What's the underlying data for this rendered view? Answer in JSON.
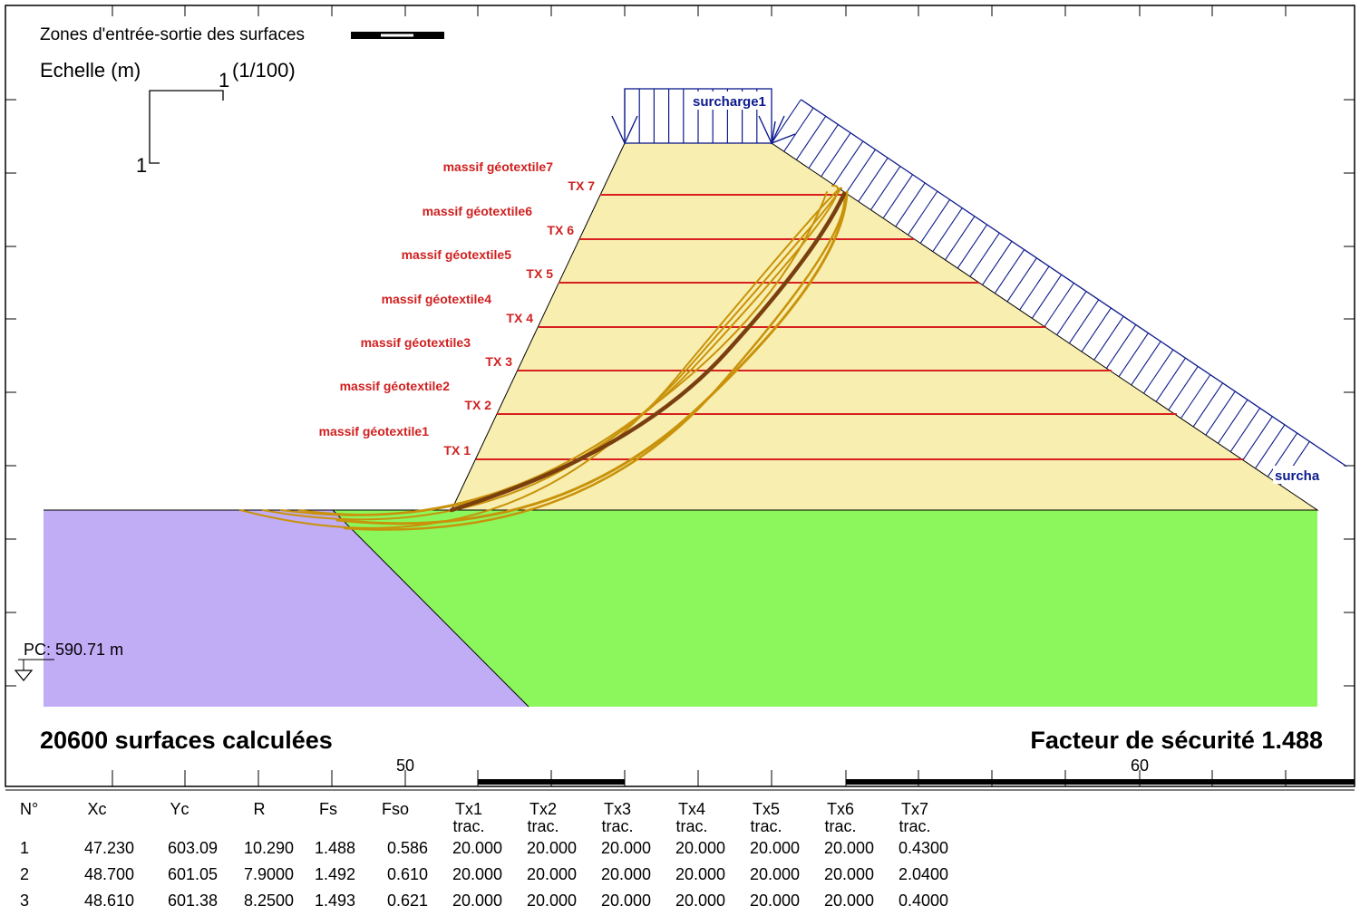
{
  "header": {
    "zones_label": "Zones d'entrée-sortie des surfaces",
    "scale_label": "Echelle (m)",
    "scale_ratio": "(1/100)",
    "scale_x_tick": "1",
    "scale_y_tick": "1"
  },
  "loads": {
    "top": "surcharge1",
    "slope": "surcha"
  },
  "layers": [
    {
      "massif": "massif géotextile1",
      "tx": "TX 1"
    },
    {
      "massif": "massif géotextile2",
      "tx": "TX 2"
    },
    {
      "massif": "massif géotextile3",
      "tx": "TX 3"
    },
    {
      "massif": "massif géotextile4",
      "tx": "TX 4"
    },
    {
      "massif": "massif géotextile5",
      "tx": "TX 5"
    },
    {
      "massif": "massif géotextile6",
      "tx": "TX 6"
    },
    {
      "massif": "massif géotextile7",
      "tx": "TX 7"
    }
  ],
  "reference_level": "PC: 590.71 m",
  "summary": {
    "surfaces": "20600 surfaces calculées",
    "safety_factor": "Facteur de sécurité  1.488"
  },
  "axis": {
    "ticks": [
      "50",
      "60"
    ]
  },
  "colors": {
    "embankment": "#f8eeb0",
    "foundation": "#8cf75c",
    "left_soil": "#c1acf6",
    "geotextile": "#d82020",
    "load": "#0c1a8c",
    "surface_critical": "#7a3f0e",
    "surface": "#c8920a",
    "label_red": "#d02020"
  },
  "table": {
    "headers": [
      {
        "top": "N°",
        "sub": ""
      },
      {
        "top": "Xc",
        "sub": ""
      },
      {
        "top": "Yc",
        "sub": ""
      },
      {
        "top": "R",
        "sub": ""
      },
      {
        "top": "Fs",
        "sub": ""
      },
      {
        "top": "Fso",
        "sub": ""
      },
      {
        "top": "Tx1",
        "sub": "trac."
      },
      {
        "top": "Tx2",
        "sub": "trac."
      },
      {
        "top": "Tx3",
        "sub": "trac."
      },
      {
        "top": "Tx4",
        "sub": "trac."
      },
      {
        "top": "Tx5",
        "sub": "trac."
      },
      {
        "top": "Tx6",
        "sub": "trac."
      },
      {
        "top": "Tx7",
        "sub": "trac."
      }
    ],
    "rows": [
      [
        "1",
        "47.230",
        "603.09",
        "10.290",
        "1.488",
        "0.586",
        "20.000",
        "20.000",
        "20.000",
        "20.000",
        "20.000",
        "20.000",
        "0.4300"
      ],
      [
        "2",
        "48.700",
        "601.05",
        "7.9000",
        "1.492",
        "0.610",
        "20.000",
        "20.000",
        "20.000",
        "20.000",
        "20.000",
        "20.000",
        "2.0400"
      ],
      [
        "3",
        "48.610",
        "601.38",
        "8.2500",
        "1.493",
        "0.621",
        "20.000",
        "20.000",
        "20.000",
        "20.000",
        "20.000",
        "20.000",
        "0.4000"
      ]
    ]
  }
}
